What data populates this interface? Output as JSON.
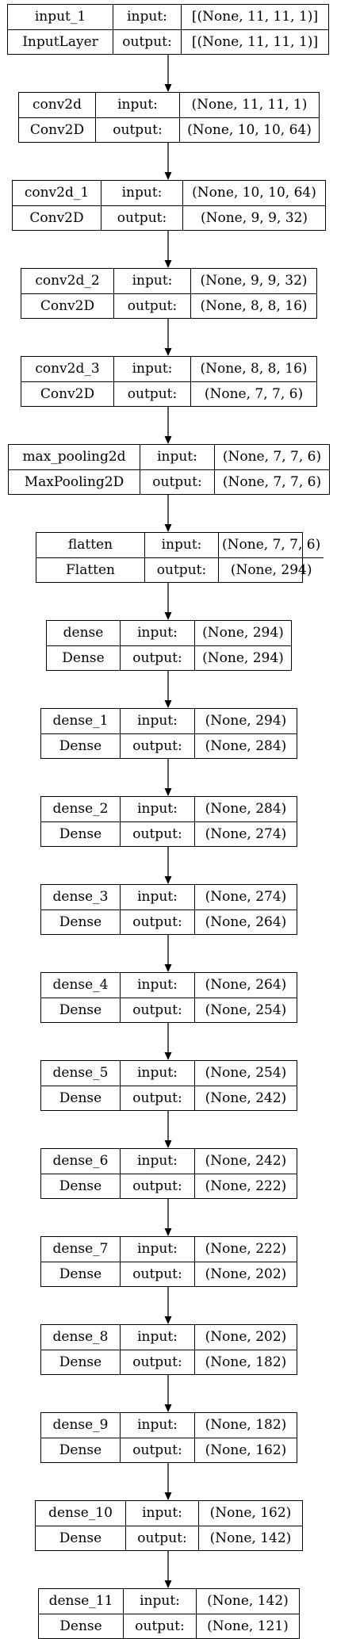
{
  "diagram": {
    "io_labels": {
      "input": "input:",
      "output": "output:"
    },
    "layers": [
      {
        "name": "input_1",
        "type": "InputLayer",
        "input": "[(None, 11, 11, 1)]",
        "output": "[(None, 11, 11, 1)]"
      },
      {
        "name": "conv2d",
        "type": "Conv2D",
        "input": "(None, 11, 11, 1)",
        "output": "(None, 10, 10, 64)"
      },
      {
        "name": "conv2d_1",
        "type": "Conv2D",
        "input": "(None, 10, 10, 64)",
        "output": "(None, 9, 9, 32)"
      },
      {
        "name": "conv2d_2",
        "type": "Conv2D",
        "input": "(None, 9, 9, 32)",
        "output": "(None, 8, 8, 16)"
      },
      {
        "name": "conv2d_3",
        "type": "Conv2D",
        "input": "(None, 8, 8, 16)",
        "output": "(None, 7, 7, 6)"
      },
      {
        "name": "max_pooling2d",
        "type": "MaxPooling2D",
        "input": "(None, 7, 7, 6)",
        "output": "(None, 7, 7, 6)"
      },
      {
        "name": "flatten",
        "type": "Flatten",
        "input": "(None, 7, 7, 6)",
        "output": "(None, 294)"
      },
      {
        "name": "dense",
        "type": "Dense",
        "input": "(None, 294)",
        "output": "(None, 294)"
      },
      {
        "name": "dense_1",
        "type": "Dense",
        "input": "(None, 294)",
        "output": "(None, 284)"
      },
      {
        "name": "dense_2",
        "type": "Dense",
        "input": "(None, 284)",
        "output": "(None, 274)"
      },
      {
        "name": "dense_3",
        "type": "Dense",
        "input": "(None, 274)",
        "output": "(None, 264)"
      },
      {
        "name": "dense_4",
        "type": "Dense",
        "input": "(None, 264)",
        "output": "(None, 254)"
      },
      {
        "name": "dense_5",
        "type": "Dense",
        "input": "(None, 254)",
        "output": "(None, 242)"
      },
      {
        "name": "dense_6",
        "type": "Dense",
        "input": "(None, 242)",
        "output": "(None, 222)"
      },
      {
        "name": "dense_7",
        "type": "Dense",
        "input": "(None, 222)",
        "output": "(None, 202)"
      },
      {
        "name": "dense_8",
        "type": "Dense",
        "input": "(None, 202)",
        "output": "(None, 182)"
      },
      {
        "name": "dense_9",
        "type": "Dense",
        "input": "(None, 182)",
        "output": "(None, 162)"
      },
      {
        "name": "dense_10",
        "type": "Dense",
        "input": "(None, 162)",
        "output": "(None, 142)"
      },
      {
        "name": "dense_11",
        "type": "Dense",
        "input": "(None, 142)",
        "output": "(None, 121)"
      }
    ]
  }
}
